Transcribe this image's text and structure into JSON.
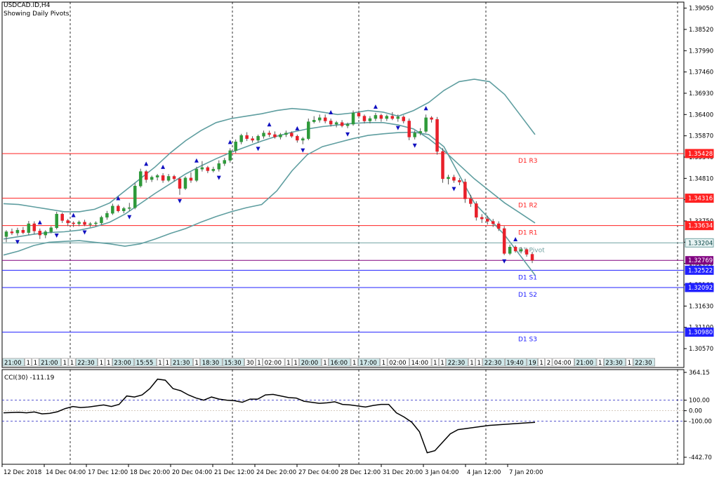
{
  "header": {
    "symbol": "USDCAD.ID,H4",
    "subtitle": "Showing Daily Pivots."
  },
  "chart_data": {
    "type": "candlestick",
    "colors": {
      "bull": "#2e9a3a",
      "bear": "#e8202a",
      "bands": "#5f9ea0",
      "resistance": "#ff2020",
      "support": "#2020ff",
      "pivot": "#6fa0a0",
      "cci": "#000000"
    },
    "price_axis": {
      "ylim": [
        1.301,
        1.392
      ],
      "ticks": [
        "1.39050",
        "1.38520",
        "1.37990",
        "1.37460",
        "1.36930",
        "1.36400",
        "1.35870",
        "1.35340",
        "1.34810",
        "1.34280",
        "1.33750",
        "1.33220",
        "1.32690",
        "1.32160",
        "1.31630",
        "1.31100",
        "1.30570"
      ]
    },
    "pivots": [
      {
        "label": "D1 R3",
        "value": 1.35428,
        "price_label": "1.35428",
        "kind": "resistance"
      },
      {
        "label": "D1 R2",
        "value": 1.34316,
        "price_label": "1.34316",
        "kind": "resistance"
      },
      {
        "label": "D1 R1",
        "value": 1.33634,
        "price_label": "1.33634",
        "kind": "resistance"
      },
      {
        "label": "D1 Pivot",
        "value": 1.33204,
        "price_label": "1.33204",
        "kind": "pivot"
      },
      {
        "label": "D1 S1",
        "value": 1.32522,
        "price_label": "1.32522",
        "kind": "support"
      },
      {
        "label": "D1 S2",
        "value": 1.32092,
        "price_label": "1.32092",
        "kind": "support"
      },
      {
        "label": "D1 S3",
        "value": 1.3098,
        "price_label": "1.30980",
        "kind": "support"
      }
    ],
    "current_price": {
      "value": 1.32769,
      "label": "1.32769"
    },
    "session_tags": [
      "21:00",
      "1",
      "1",
      "21:00",
      "1",
      "1",
      "22:30",
      "1",
      "1",
      "23:00",
      "15:55",
      "1",
      "1",
      "21:30",
      "1",
      "18:30",
      "15:30",
      "30",
      "1",
      "02:00",
      "1",
      "1",
      "20:00",
      "1",
      "16:00",
      "1",
      "17:00",
      "1",
      "02:00",
      "14:00",
      "1",
      "1",
      "22:30",
      "1",
      "1",
      "22:30",
      "19:40",
      "19",
      "1",
      "2",
      "04:00",
      "21:00",
      "1",
      "23:30",
      "1",
      "22:30"
    ],
    "time_axis": [
      "12 Dec 2018",
      "14 Dec 04:00",
      "17 Dec 12:00",
      "18 Dec 20:00",
      "20 Dec 04:00",
      "21 Dec 12:00",
      "24 Dec 20:00",
      "27 Dec 04:00",
      "28 Dec 12:00",
      "31 Dec 20:00",
      "3 Jan 04:00",
      "4 Jan 12:00",
      "7 Jan 20:00"
    ],
    "candles": [
      [
        1.3336,
        1.3352,
        1.3322,
        1.3348
      ],
      [
        1.3348,
        1.3356,
        1.334,
        1.3345
      ],
      [
        1.3345,
        1.3358,
        1.3338,
        1.3352
      ],
      [
        1.3352,
        1.336,
        1.3342,
        1.3346
      ],
      [
        1.3346,
        1.3375,
        1.334,
        1.3368
      ],
      [
        1.3368,
        1.3374,
        1.3342,
        1.335
      ],
      [
        1.335,
        1.3356,
        1.333,
        1.334
      ],
      [
        1.334,
        1.3352,
        1.3332,
        1.3348
      ],
      [
        1.3348,
        1.3362,
        1.3344,
        1.3358
      ],
      [
        1.3358,
        1.3398,
        1.3354,
        1.3392
      ],
      [
        1.3392,
        1.3396,
        1.337,
        1.3376
      ],
      [
        1.3376,
        1.338,
        1.3362,
        1.337
      ],
      [
        1.337,
        1.3374,
        1.336,
        1.3368
      ],
      [
        1.3368,
        1.3376,
        1.3362,
        1.3372
      ],
      [
        1.3372,
        1.3378,
        1.3362,
        1.3366
      ],
      [
        1.3366,
        1.3372,
        1.336,
        1.3368
      ],
      [
        1.3368,
        1.3374,
        1.3362,
        1.337
      ],
      [
        1.337,
        1.3388,
        1.3366,
        1.3384
      ],
      [
        1.3384,
        1.34,
        1.3378,
        1.3394
      ],
      [
        1.3394,
        1.3418,
        1.339,
        1.3412
      ],
      [
        1.3412,
        1.3416,
        1.3396,
        1.34
      ],
      [
        1.34,
        1.341,
        1.3394,
        1.3406
      ],
      [
        1.3406,
        1.342,
        1.34,
        1.3408
      ],
      [
        1.3408,
        1.347,
        1.3404,
        1.3462
      ],
      [
        1.3462,
        1.3505,
        1.3458,
        1.3498
      ],
      [
        1.3498,
        1.3502,
        1.347,
        1.3478
      ],
      [
        1.3478,
        1.3488,
        1.3472,
        1.3484
      ],
      [
        1.3484,
        1.3492,
        1.3476,
        1.3488
      ],
      [
        1.3488,
        1.3494,
        1.347,
        1.3476
      ],
      [
        1.3476,
        1.3492,
        1.3472,
        1.3486
      ],
      [
        1.3486,
        1.349,
        1.3474,
        1.348
      ],
      [
        1.348,
        1.3484,
        1.344,
        1.3456
      ],
      [
        1.3456,
        1.3486,
        1.3452,
        1.3482
      ],
      [
        1.3482,
        1.3496,
        1.347,
        1.3476
      ],
      [
        1.3476,
        1.351,
        1.3472,
        1.3504
      ],
      [
        1.3504,
        1.3524,
        1.3498,
        1.3508
      ],
      [
        1.3508,
        1.3512,
        1.3494,
        1.35
      ],
      [
        1.35,
        1.351,
        1.3496,
        1.3504
      ],
      [
        1.3504,
        1.3526,
        1.3498,
        1.3518
      ],
      [
        1.3518,
        1.3532,
        1.3512,
        1.3526
      ],
      [
        1.3526,
        1.3556,
        1.352,
        1.355
      ],
      [
        1.355,
        1.3578,
        1.3544,
        1.3572
      ],
      [
        1.3572,
        1.3592,
        1.3566,
        1.3588
      ],
      [
        1.3588,
        1.3596,
        1.3574,
        1.358
      ],
      [
        1.358,
        1.3586,
        1.357,
        1.3576
      ],
      [
        1.3576,
        1.359,
        1.357,
        1.3586
      ],
      [
        1.3586,
        1.36,
        1.358,
        1.3594
      ],
      [
        1.3594,
        1.36,
        1.3584,
        1.359
      ],
      [
        1.359,
        1.3598,
        1.358,
        1.3584
      ],
      [
        1.3584,
        1.3594,
        1.3578,
        1.359
      ],
      [
        1.359,
        1.36,
        1.3584,
        1.3594
      ],
      [
        1.3594,
        1.3598,
        1.3582,
        1.3586
      ],
      [
        1.3586,
        1.359,
        1.357,
        1.3576
      ],
      [
        1.3576,
        1.3584,
        1.3566,
        1.358
      ],
      [
        1.358,
        1.363,
        1.3576,
        1.3622
      ],
      [
        1.3622,
        1.3636,
        1.3618,
        1.3626
      ],
      [
        1.3626,
        1.364,
        1.362,
        1.3632
      ],
      [
        1.3632,
        1.364,
        1.3618,
        1.3624
      ],
      [
        1.3624,
        1.363,
        1.361,
        1.3616
      ],
      [
        1.3616,
        1.3624,
        1.3608,
        1.362
      ],
      [
        1.362,
        1.3626,
        1.3608,
        1.3612
      ],
      [
        1.3612,
        1.362,
        1.3606,
        1.3616
      ],
      [
        1.3616,
        1.365,
        1.3612,
        1.3644
      ],
      [
        1.3644,
        1.365,
        1.363,
        1.3636
      ],
      [
        1.3636,
        1.364,
        1.3618,
        1.3624
      ],
      [
        1.3624,
        1.3636,
        1.3618,
        1.363
      ],
      [
        1.363,
        1.3644,
        1.3624,
        1.3638
      ],
      [
        1.3638,
        1.3642,
        1.3622,
        1.363
      ],
      [
        1.363,
        1.364,
        1.3624,
        1.3636
      ],
      [
        1.3636,
        1.3646,
        1.3626,
        1.363
      ],
      [
        1.363,
        1.364,
        1.3622,
        1.3634
      ],
      [
        1.3634,
        1.3638,
        1.3618,
        1.3624
      ],
      [
        1.3624,
        1.363,
        1.3576,
        1.3584
      ],
      [
        1.3584,
        1.36,
        1.3578,
        1.3594
      ],
      [
        1.3594,
        1.3606,
        1.3588,
        1.3598
      ],
      [
        1.3598,
        1.364,
        1.3594,
        1.3632
      ],
      [
        1.3632,
        1.3636,
        1.362,
        1.3628
      ],
      [
        1.3628,
        1.3634,
        1.354,
        1.3548
      ],
      [
        1.3548,
        1.3556,
        1.347,
        1.348
      ],
      [
        1.348,
        1.349,
        1.3466,
        1.3484
      ],
      [
        1.3484,
        1.349,
        1.347,
        1.3476
      ],
      [
        1.3476,
        1.3482,
        1.3464,
        1.3472
      ],
      [
        1.3472,
        1.348,
        1.342,
        1.343
      ],
      [
        1.343,
        1.344,
        1.341,
        1.3418
      ],
      [
        1.3418,
        1.3424,
        1.3376,
        1.3384
      ],
      [
        1.3384,
        1.3392,
        1.337,
        1.338
      ],
      [
        1.338,
        1.3388,
        1.3366,
        1.3374
      ],
      [
        1.3374,
        1.338,
        1.336,
        1.3368
      ],
      [
        1.3368,
        1.3374,
        1.335,
        1.3356
      ],
      [
        1.3356,
        1.3362,
        1.329,
        1.3294
      ],
      [
        1.3294,
        1.3316,
        1.329,
        1.331
      ],
      [
        1.331,
        1.3314,
        1.3296,
        1.33
      ],
      [
        1.33,
        1.331,
        1.3294,
        1.3304
      ],
      [
        1.3304,
        1.3308,
        1.3286,
        1.3292
      ],
      [
        1.3292,
        1.3298,
        1.327,
        1.3277
      ]
    ],
    "upper_band": [
      1.3418,
      1.3416,
      1.341,
      1.3404,
      1.3398,
      1.3398,
      1.3404,
      1.342,
      1.345,
      1.348,
      1.351,
      1.3545,
      1.3575,
      1.36,
      1.362,
      1.363,
      1.3636,
      1.3642,
      1.365,
      1.3655,
      1.3652,
      1.3646,
      1.364,
      1.3644,
      1.365,
      1.3646,
      1.3636,
      1.365,
      1.367,
      1.37,
      1.3722,
      1.3728,
      1.3722,
      1.369,
      1.364,
      1.359
    ],
    "middle_band": [
      1.333,
      1.3336,
      1.3342,
      1.3346,
      1.3348,
      1.3352,
      1.336,
      1.3372,
      1.3392,
      1.3418,
      1.3444,
      1.3468,
      1.3492,
      1.3512,
      1.353,
      1.3546,
      1.356,
      1.3574,
      1.3586,
      1.3596,
      1.3604,
      1.361,
      1.3614,
      1.3618,
      1.362,
      1.362,
      1.3614,
      1.3604,
      1.358,
      1.355,
      1.3515,
      1.348,
      1.345,
      1.342,
      1.3395,
      1.337
    ],
    "lower_band": [
      1.329,
      1.33,
      1.3314,
      1.3322,
      1.3324,
      1.3326,
      1.3322,
      1.3318,
      1.3312,
      1.3318,
      1.333,
      1.3344,
      1.3356,
      1.3372,
      1.3386,
      1.3398,
      1.3408,
      1.3416,
      1.345,
      1.35,
      1.354,
      1.356,
      1.357,
      1.358,
      1.3588,
      1.3592,
      1.3595,
      1.3596,
      1.359,
      1.356,
      1.349,
      1.342,
      1.338,
      1.334,
      1.329,
      1.324
    ],
    "cci": {
      "label": "CCI(30) -111.19",
      "ylim": [
        -442.7,
        364.15
      ],
      "ticks": [
        {
          "v": 364.15,
          "t": "364.15"
        },
        {
          "v": 100,
          "t": "100.00"
        },
        {
          "v": 0,
          "t": "0.00"
        },
        {
          "v": -100,
          "t": "-100.00"
        },
        {
          "v": -442.7,
          "t": "-442.70"
        }
      ],
      "values": [
        -20,
        -18,
        -15,
        -20,
        -12,
        -30,
        -25,
        -10,
        20,
        40,
        30,
        35,
        45,
        55,
        40,
        60,
        140,
        130,
        150,
        210,
        300,
        290,
        210,
        190,
        150,
        120,
        100,
        130,
        110,
        100,
        95,
        80,
        110,
        110,
        150,
        155,
        140,
        125,
        120,
        90,
        80,
        70,
        75,
        85,
        60,
        55,
        45,
        35,
        50,
        60,
        60,
        -20,
        -60,
        -110,
        -200,
        -400,
        -380,
        -300,
        -220,
        -180,
        -170,
        -160,
        -150,
        -140,
        -135,
        -130,
        -125,
        -120,
        -115,
        -111
      ]
    }
  }
}
